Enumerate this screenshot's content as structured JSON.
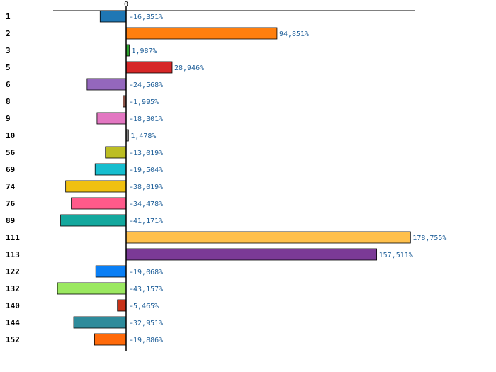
{
  "chart_data": {
    "type": "bar",
    "orientation": "horizontal",
    "title": "",
    "xlabel": "",
    "ylabel": "",
    "zero_tick_label": "0",
    "xlim": [
      -51,
      190
    ],
    "grid": false,
    "legend": "none",
    "categories": [
      "1",
      "2",
      "3",
      "5",
      "6",
      "8",
      "9",
      "10",
      "56",
      "69",
      "74",
      "76",
      "89",
      "111",
      "113",
      "122",
      "132",
      "140",
      "144",
      "152"
    ],
    "values": [
      -16.351,
      94.851,
      1.987,
      28.946,
      -24.568,
      -1.995,
      -18.301,
      1.478,
      -13.019,
      -19.504,
      -38.019,
      -34.478,
      -41.171,
      178.755,
      157.511,
      -19.068,
      -43.157,
      -5.465,
      -32.951,
      -19.886
    ],
    "value_labels": [
      "-16,351%",
      "94,851%",
      "1,987%",
      "28,946%",
      "-24,568%",
      "-1,995%",
      "-18,301%",
      "1,478%",
      "-13,019%",
      "-19,504%",
      "-38,019%",
      "-34,478%",
      "-41,171%",
      "178,755%",
      "157,511%",
      "-19,068%",
      "-43,157%",
      "-5,465%",
      "-32,951%",
      "-19,886%"
    ],
    "colors": [
      "#1f77b4",
      "#ff7f0e",
      "#2ca02c",
      "#d62728",
      "#9467bd",
      "#8c564b",
      "#e377c2",
      "#7f7f7f",
      "#bcbd22",
      "#17becf",
      "#f0c010",
      "#ff5a8a",
      "#14a89e",
      "#ffc04c",
      "#7b3a96",
      "#0a7ff5",
      "#9be860",
      "#c83218",
      "#2e8b9b",
      "#ff6a0a"
    ]
  }
}
